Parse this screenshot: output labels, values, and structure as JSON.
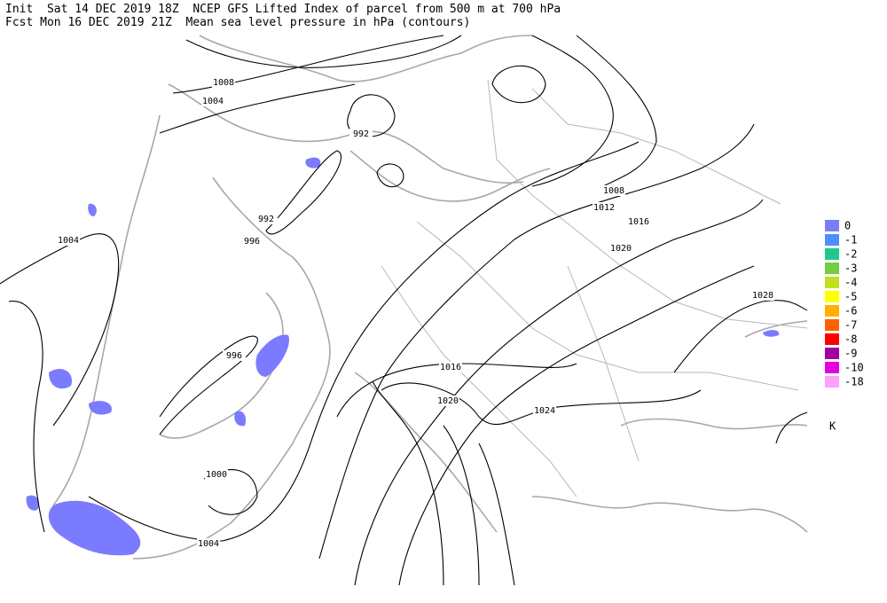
{
  "header": {
    "line1": "Init  Sat 14 DEC 2019 18Z  NCEP GFS Lifted Index of parcel from 500 m at 700 hPa",
    "line2": "Fcst Mon 16 DEC 2019 21Z  Mean sea level pressure in hPa (contours)"
  },
  "contour_labels": [
    "1008",
    "1004",
    "992",
    "992",
    "996",
    "1004",
    "996",
    "1000",
    "1004",
    "1008",
    "1012",
    "1016",
    "1020",
    "1028",
    "1016",
    "1020",
    "1024"
  ],
  "legend": {
    "entries": [
      {
        "label": "0",
        "color": "#7b7bff"
      },
      {
        "label": "-1",
        "color": "#4a90ff"
      },
      {
        "label": "-2",
        "color": "#20c890"
      },
      {
        "label": "-3",
        "color": "#70d040"
      },
      {
        "label": "-4",
        "color": "#c0e020"
      },
      {
        "label": "-5",
        "color": "#ffff00"
      },
      {
        "label": "-6",
        "color": "#ffb000"
      },
      {
        "label": "-7",
        "color": "#ff6000"
      },
      {
        "label": "-8",
        "color": "#ff0000"
      },
      {
        "label": "-9",
        "color": "#a000a0"
      },
      {
        "label": "-10",
        "color": "#e000e0"
      },
      {
        "label": "-18",
        "color": "#ffa0ff"
      }
    ],
    "unit": "K"
  }
}
